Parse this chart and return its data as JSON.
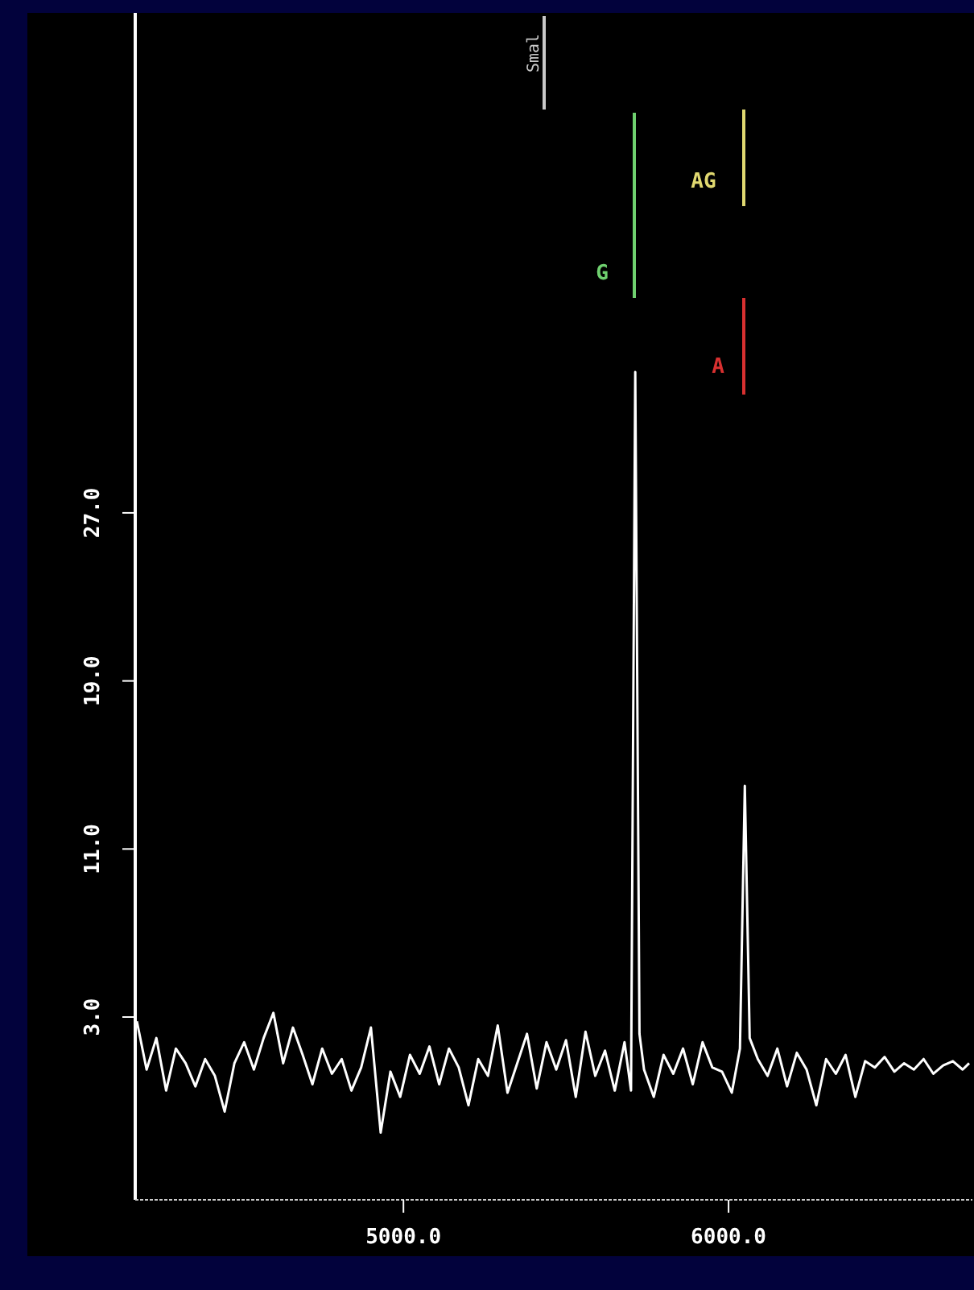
{
  "chart_data": {
    "type": "line",
    "x": [
      4180,
      4210,
      4240,
      4270,
      4300,
      4330,
      4360,
      4390,
      4420,
      4450,
      4480,
      4510,
      4540,
      4570,
      4600,
      4630,
      4660,
      4690,
      4720,
      4750,
      4780,
      4810,
      4840,
      4870,
      4900,
      4930,
      4960,
      4990,
      5020,
      5050,
      5080,
      5110,
      5140,
      5170,
      5200,
      5230,
      5260,
      5290,
      5320,
      5350,
      5380,
      5410,
      5440,
      5470,
      5500,
      5530,
      5560,
      5590,
      5620,
      5650,
      5680,
      5700,
      5713,
      5726,
      5740,
      5770,
      5800,
      5830,
      5860,
      5890,
      5920,
      5950,
      5980,
      6010,
      6035,
      6050,
      6065,
      6090,
      6120,
      6150,
      6180,
      6210,
      6240,
      6270,
      6300,
      6330,
      6360,
      6390,
      6420,
      6450,
      6480,
      6510,
      6540,
      6570,
      6600,
      6630,
      6660,
      6690,
      6720,
      6740
    ],
    "series": [
      {
        "color": "#ffffff",
        "values": [
          2.8,
          0.5,
          2.0,
          -0.5,
          1.5,
          0.8,
          -0.3,
          1.0,
          0.2,
          -1.5,
          0.8,
          1.8,
          0.5,
          2.0,
          3.2,
          0.8,
          2.5,
          1.2,
          -0.2,
          1.5,
          0.3,
          1.0,
          -0.5,
          0.6,
          2.5,
          -2.5,
          0.4,
          -0.8,
          1.2,
          0.3,
          1.6,
          -0.2,
          1.5,
          0.6,
          -1.2,
          1.0,
          0.2,
          2.6,
          -0.6,
          0.8,
          2.2,
          -0.4,
          1.8,
          0.5,
          1.9,
          -0.8,
          2.3,
          0.2,
          1.4,
          -0.5,
          1.8,
          -0.5,
          33.7,
          2.2,
          0.5,
          -0.8,
          1.2,
          0.3,
          1.5,
          -0.2,
          1.8,
          0.6,
          0.4,
          -0.6,
          1.5,
          14.0,
          2.0,
          1.0,
          0.2,
          1.5,
          -0.3,
          1.3,
          0.5,
          -1.2,
          1.0,
          0.3,
          1.2,
          -0.8,
          0.9,
          0.6,
          1.1,
          0.4,
          0.8,
          0.5,
          1.0,
          0.3,
          0.7,
          0.9,
          0.5,
          0.8
        ]
      }
    ],
    "xlim": [
      4175,
      6750
    ],
    "xticks": [
      {
        "value": 5000,
        "label": "5000.0"
      },
      {
        "value": 6000,
        "label": "6000.0"
      }
    ],
    "ylim": [
      -5.7,
      50.8
    ],
    "yticks": [
      {
        "value": 3,
        "label": "3.0"
      },
      {
        "value": 11,
        "label": "11.0"
      },
      {
        "value": 19,
        "label": "19.0"
      },
      {
        "value": 27,
        "label": "27.0"
      }
    ],
    "annotations": [
      "Smal",
      "G",
      "AG",
      "A"
    ],
    "grid": false,
    "marker": "none",
    "line_style": "solid"
  }
}
